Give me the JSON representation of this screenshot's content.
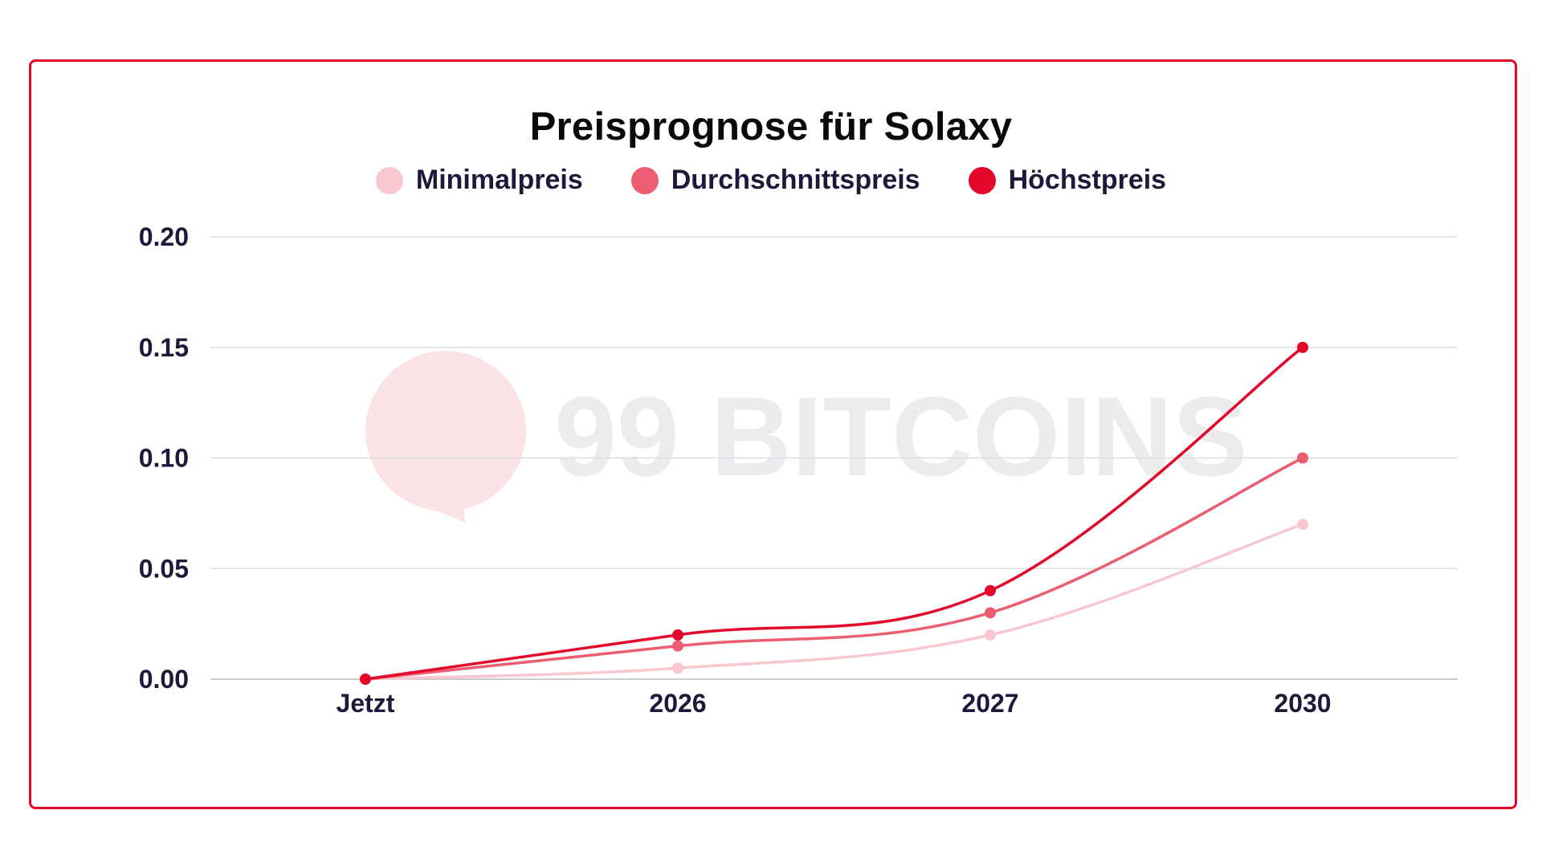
{
  "chart_data": {
    "type": "line",
    "title": "Preisprognose für Solaxy",
    "categories": [
      "Jetzt",
      "2026",
      "2027",
      "2030"
    ],
    "series": [
      {
        "name": "Minimalpreis",
        "color": "#f9c7cf",
        "values": [
          0.0,
          0.005,
          0.02,
          0.07
        ]
      },
      {
        "name": "Durchschnittspreis",
        "color": "#ec5d72",
        "values": [
          0.0,
          0.015,
          0.03,
          0.1
        ]
      },
      {
        "name": "Höchstpreis",
        "color": "#e3072a",
        "values": [
          0.0,
          0.02,
          0.04,
          0.15
        ]
      }
    ],
    "y_ticks": [
      "0.00",
      "0.05",
      "0.10",
      "0.15",
      "0.20"
    ],
    "ylim": [
      0,
      0.2
    ],
    "xlabel": "",
    "ylabel": "",
    "grid": true,
    "legend_position": "top-center"
  },
  "watermark": {
    "text": "99 BITCOINS",
    "color": "#ececee",
    "logo_color": "#fce3e6"
  },
  "frame_color": "#e3072a"
}
